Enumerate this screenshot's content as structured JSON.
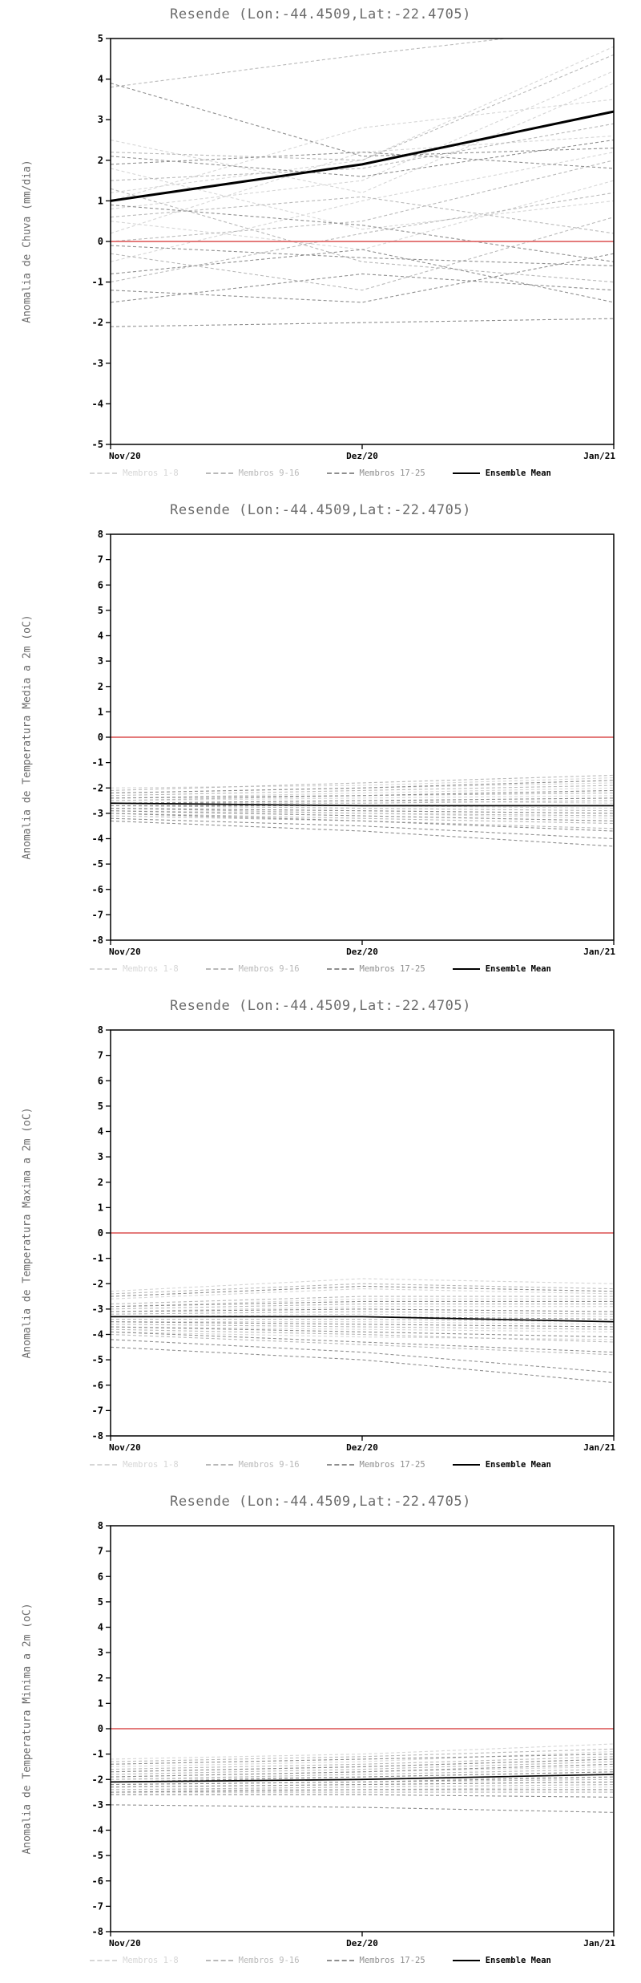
{
  "chart_data": [
    {
      "type": "line",
      "title": "Resende (Lon:-44.4509,Lat:-22.4705)",
      "ylabel": "Anomalia de Chuva (mm/dia)",
      "x_tick_labels": [
        "Nov/20",
        "Dez/20",
        "Jan/21"
      ],
      "ylim": [
        -5,
        5
      ],
      "ytick_step": 1,
      "grid": false,
      "legend_position": "bottom",
      "zero_line_color": "#e06868",
      "groups": [
        {
          "name": "Membros 1-8",
          "color": "#d6d6d6",
          "style": "dashed",
          "members": [
            [
              1.2,
              2.0,
              4.8
            ],
            [
              0.8,
              1.5,
              4.2
            ],
            [
              2.5,
              1.2,
              3.9
            ],
            [
              0.2,
              2.2,
              2.6
            ],
            [
              1.8,
              0.3,
              1.0
            ],
            [
              -0.5,
              1.0,
              2.2
            ],
            [
              1.0,
              2.8,
              3.5
            ],
            [
              0.5,
              -0.2,
              1.5
            ]
          ]
        },
        {
          "name": "Membros 9-16",
          "color": "#b9b9b9",
          "style": "dashed",
          "members": [
            [
              3.8,
              4.6,
              5.3
            ],
            [
              2.2,
              2.0,
              4.6
            ],
            [
              1.5,
              1.8,
              2.9
            ],
            [
              0.0,
              0.5,
              2.0
            ],
            [
              -1.0,
              0.2,
              1.2
            ],
            [
              1.3,
              -0.5,
              -1.0
            ],
            [
              0.6,
              1.1,
              0.2
            ],
            [
              -0.3,
              -1.2,
              0.6
            ]
          ]
        },
        {
          "name": "Membros 17-25",
          "color": "#8f8f8f",
          "style": "dashed",
          "members": [
            [
              3.9,
              2.1,
              2.3
            ],
            [
              2.1,
              1.6,
              2.5
            ],
            [
              1.9,
              2.2,
              1.8
            ],
            [
              -0.1,
              -0.4,
              -0.6
            ],
            [
              -0.8,
              -0.2,
              -1.5
            ],
            [
              -1.2,
              -1.5,
              -0.3
            ],
            [
              -1.5,
              -0.8,
              -1.2
            ],
            [
              -2.1,
              -2.0,
              -1.9
            ],
            [
              0.9,
              0.4,
              -0.5
            ]
          ]
        }
      ],
      "mean": {
        "name": "Ensemble Mean",
        "color": "#000000",
        "values": [
          1.0,
          1.9,
          3.2
        ]
      }
    },
    {
      "type": "line",
      "title": "Resende (Lon:-44.4509,Lat:-22.4705)",
      "ylabel": "Anomalia de Temperatura Media a 2m (oC)",
      "x_tick_labels": [
        "Nov/20",
        "Dez/20",
        "Jan/21"
      ],
      "ylim": [
        -8,
        8
      ],
      "ytick_step": 1,
      "grid": false,
      "legend_position": "bottom",
      "zero_line_color": "#e06868",
      "groups": [
        {
          "name": "Membros 1-8",
          "color": "#d6d6d6",
          "style": "dashed",
          "members": [
            [
              -2.0,
              -1.9,
              -1.6
            ],
            [
              -2.2,
              -2.0,
              -1.8
            ],
            [
              -2.4,
              -2.2,
              -2.0
            ],
            [
              -2.5,
              -2.4,
              -2.3
            ],
            [
              -2.6,
              -2.5,
              -2.6
            ],
            [
              -2.7,
              -2.7,
              -2.8
            ],
            [
              -2.8,
              -2.9,
              -3.0
            ],
            [
              -2.9,
              -3.0,
              -3.2
            ]
          ]
        },
        {
          "name": "Membros 9-16",
          "color": "#b9b9b9",
          "style": "dashed",
          "members": [
            [
              -2.1,
              -1.8,
              -1.5
            ],
            [
              -2.3,
              -2.1,
              -1.9
            ],
            [
              -2.5,
              -2.3,
              -2.2
            ],
            [
              -2.6,
              -2.6,
              -2.5
            ],
            [
              -2.7,
              -2.8,
              -2.9
            ],
            [
              -2.8,
              -3.0,
              -3.1
            ],
            [
              -3.0,
              -3.2,
              -3.4
            ],
            [
              -3.1,
              -3.3,
              -3.6
            ]
          ]
        },
        {
          "name": "Membros 17-25",
          "color": "#8f8f8f",
          "style": "dashed",
          "members": [
            [
              -2.2,
              -2.0,
              -1.7
            ],
            [
              -2.4,
              -2.3,
              -2.1
            ],
            [
              -2.6,
              -2.5,
              -2.4
            ],
            [
              -2.7,
              -2.7,
              -2.7
            ],
            [
              -2.8,
              -2.9,
              -3.0
            ],
            [
              -2.9,
              -3.1,
              -3.3
            ],
            [
              -3.0,
              -3.3,
              -3.7
            ],
            [
              -3.2,
              -3.5,
              -4.0
            ],
            [
              -3.3,
              -3.7,
              -4.3
            ]
          ]
        }
      ],
      "mean": {
        "name": "Ensemble Mean",
        "color": "#000000",
        "values": [
          -2.6,
          -2.7,
          -2.7
        ]
      }
    },
    {
      "type": "line",
      "title": "Resende (Lon:-44.4509,Lat:-22.4705)",
      "ylabel": "Anomalia de Temperatura Maxima a 2m (oC)",
      "x_tick_labels": [
        "Nov/20",
        "Dez/20",
        "Jan/21"
      ],
      "ylim": [
        -8,
        8
      ],
      "ytick_step": 1,
      "grid": false,
      "legend_position": "bottom",
      "zero_line_color": "#e06868",
      "groups": [
        {
          "name": "Membros 1-8",
          "color": "#d6d6d6",
          "style": "dashed",
          "members": [
            [
              -2.3,
              -1.8,
              -2.0
            ],
            [
              -2.6,
              -2.2,
              -2.4
            ],
            [
              -2.9,
              -2.6,
              -2.6
            ],
            [
              -3.1,
              -2.9,
              -2.9
            ],
            [
              -3.3,
              -3.2,
              -3.3
            ],
            [
              -3.5,
              -3.5,
              -3.6
            ],
            [
              -3.7,
              -3.8,
              -3.9
            ],
            [
              -3.9,
              -4.1,
              -4.2
            ]
          ]
        },
        {
          "name": "Membros 9-16",
          "color": "#b9b9b9",
          "style": "dashed",
          "members": [
            [
              -2.4,
              -2.0,
              -2.2
            ],
            [
              -2.8,
              -2.5,
              -2.5
            ],
            [
              -3.0,
              -2.8,
              -2.8
            ],
            [
              -3.2,
              -3.1,
              -3.2
            ],
            [
              -3.4,
              -3.4,
              -3.5
            ],
            [
              -3.6,
              -3.7,
              -3.8
            ],
            [
              -3.8,
              -4.0,
              -4.3
            ],
            [
              -4.0,
              -4.4,
              -4.8
            ]
          ]
        },
        {
          "name": "Membros 17-25",
          "color": "#8f8f8f",
          "style": "dashed",
          "members": [
            [
              -2.5,
              -2.1,
              -2.3
            ],
            [
              -2.9,
              -2.7,
              -2.7
            ],
            [
              -3.1,
              -3.0,
              -3.1
            ],
            [
              -3.3,
              -3.3,
              -3.4
            ],
            [
              -3.5,
              -3.6,
              -3.7
            ],
            [
              -3.7,
              -3.9,
              -4.1
            ],
            [
              -3.9,
              -4.3,
              -4.7
            ],
            [
              -4.2,
              -4.7,
              -5.5
            ],
            [
              -4.5,
              -5.0,
              -5.9
            ]
          ]
        }
      ],
      "mean": {
        "name": "Ensemble Mean",
        "color": "#000000",
        "values": [
          -3.3,
          -3.3,
          -3.5
        ]
      }
    },
    {
      "type": "line",
      "title": "Resende (Lon:-44.4509,Lat:-22.4705)",
      "ylabel": "Anomalia de Temperatura Minima a 2m (oC)",
      "x_tick_labels": [
        "Nov/20",
        "Dez/20",
        "Jan/21"
      ],
      "ylim": [
        -8,
        8
      ],
      "ytick_step": 1,
      "grid": false,
      "legend_position": "bottom",
      "zero_line_color": "#e06868",
      "groups": [
        {
          "name": "Membros 1-8",
          "color": "#d6d6d6",
          "style": "dashed",
          "members": [
            [
              -1.2,
              -1.0,
              -0.6
            ],
            [
              -1.5,
              -1.3,
              -0.9
            ],
            [
              -1.7,
              -1.5,
              -1.2
            ],
            [
              -1.9,
              -1.7,
              -1.5
            ],
            [
              -2.0,
              -1.9,
              -1.7
            ],
            [
              -2.1,
              -2.0,
              -1.9
            ],
            [
              -2.3,
              -2.2,
              -2.1
            ],
            [
              -2.4,
              -2.4,
              -2.3
            ]
          ]
        },
        {
          "name": "Membros 9-16",
          "color": "#b9b9b9",
          "style": "dashed",
          "members": [
            [
              -1.3,
              -1.1,
              -0.8
            ],
            [
              -1.6,
              -1.4,
              -1.1
            ],
            [
              -1.8,
              -1.6,
              -1.3
            ],
            [
              -2.0,
              -1.8,
              -1.6
            ],
            [
              -2.1,
              -2.0,
              -1.8
            ],
            [
              -2.2,
              -2.1,
              -2.0
            ],
            [
              -2.4,
              -2.3,
              -2.2
            ],
            [
              -2.5,
              -2.5,
              -2.5
            ]
          ]
        },
        {
          "name": "Membros 17-25",
          "color": "#8f8f8f",
          "style": "dashed",
          "members": [
            [
              -1.4,
              -1.2,
              -1.0
            ],
            [
              -1.7,
              -1.5,
              -1.2
            ],
            [
              -1.9,
              -1.7,
              -1.4
            ],
            [
              -2.1,
              -1.9,
              -1.7
            ],
            [
              -2.2,
              -2.1,
              -1.9
            ],
            [
              -2.3,
              -2.2,
              -2.1
            ],
            [
              -2.5,
              -2.4,
              -2.4
            ],
            [
              -2.6,
              -2.6,
              -2.7
            ],
            [
              -3.0,
              -3.1,
              -3.3
            ]
          ]
        }
      ],
      "mean": {
        "name": "Ensemble Mean",
        "color": "#000000",
        "values": [
          -2.1,
          -2.0,
          -1.8
        ]
      }
    }
  ]
}
